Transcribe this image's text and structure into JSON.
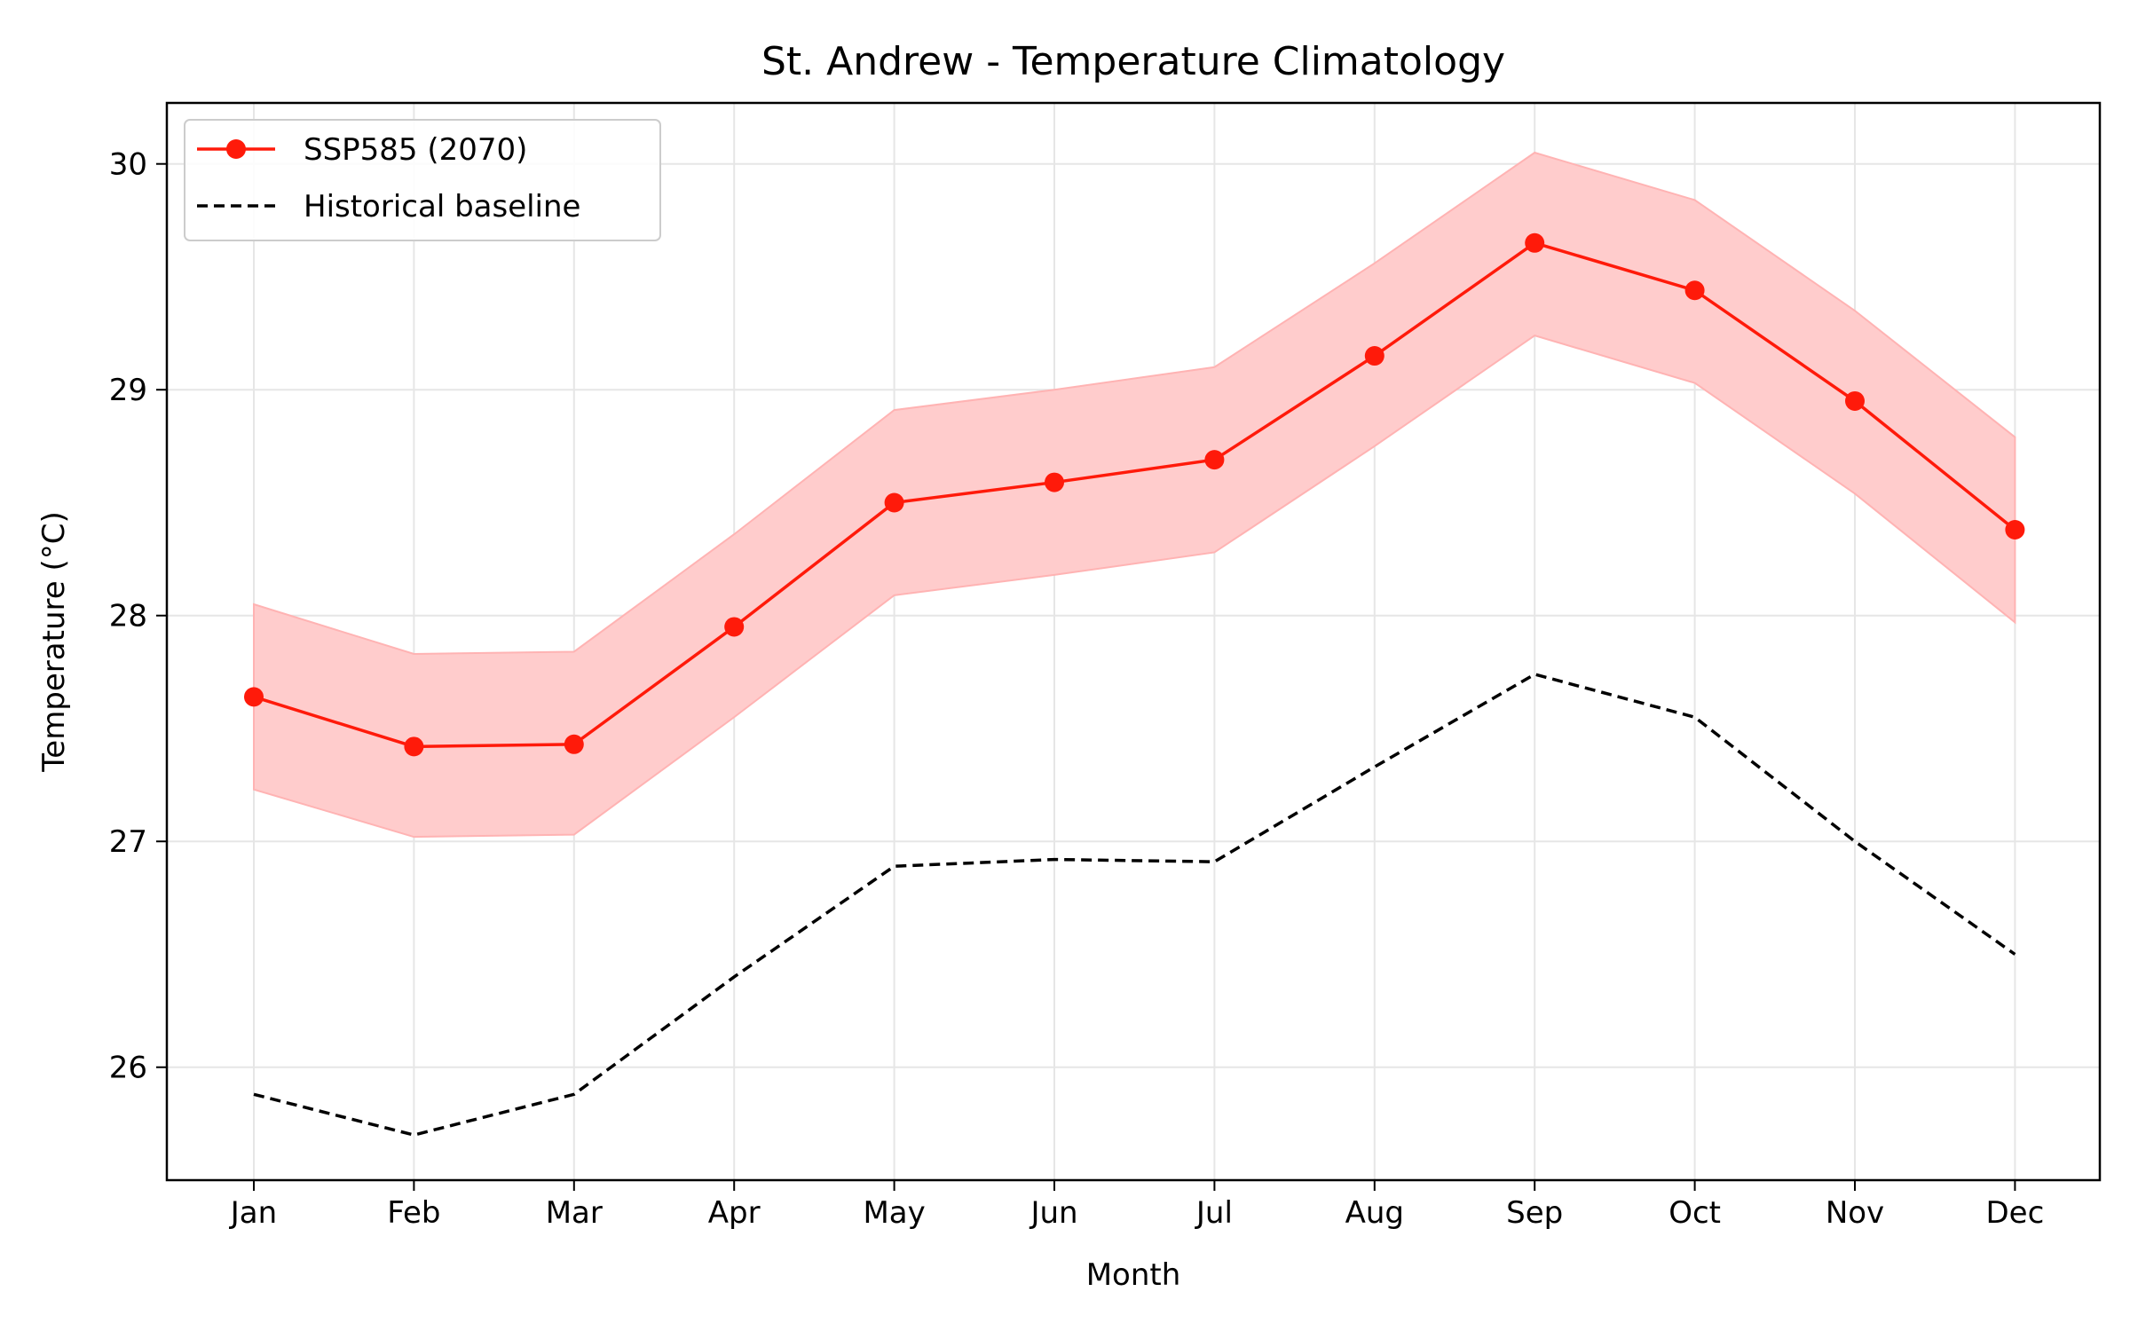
{
  "chart_data": {
    "type": "line",
    "title": "St. Andrew - Temperature Climatology",
    "xlabel": "Month",
    "ylabel": "Temperature (°C)",
    "categories": [
      "Jan",
      "Feb",
      "Mar",
      "Apr",
      "May",
      "Jun",
      "Jul",
      "Aug",
      "Sep",
      "Oct",
      "Nov",
      "Dec"
    ],
    "ylim": [
      25.5,
      30.27
    ],
    "yticks": [
      26,
      27,
      28,
      29,
      30
    ],
    "grid": true,
    "legend_position": "top-left",
    "series": [
      {
        "name": "SSP585 (2070)",
        "style": "solid-markers",
        "color": "#ff1a0a",
        "values": [
          27.64,
          27.42,
          27.43,
          27.95,
          28.5,
          28.59,
          28.69,
          29.15,
          29.65,
          29.44,
          28.95,
          28.38
        ],
        "band_lower": [
          27.23,
          27.02,
          27.03,
          27.55,
          28.09,
          28.18,
          28.28,
          28.75,
          29.24,
          29.03,
          28.54,
          27.97
        ],
        "band_upper": [
          28.05,
          27.83,
          27.84,
          28.36,
          28.91,
          29.0,
          29.1,
          29.56,
          30.05,
          29.84,
          29.35,
          28.79
        ],
        "band_color": "#ffcccc"
      },
      {
        "name": "Historical baseline",
        "style": "dashed",
        "color": "#000000",
        "values": [
          25.88,
          25.7,
          25.88,
          26.4,
          26.89,
          26.92,
          26.91,
          27.33,
          27.74,
          27.55,
          27.0,
          26.5
        ]
      }
    ]
  }
}
